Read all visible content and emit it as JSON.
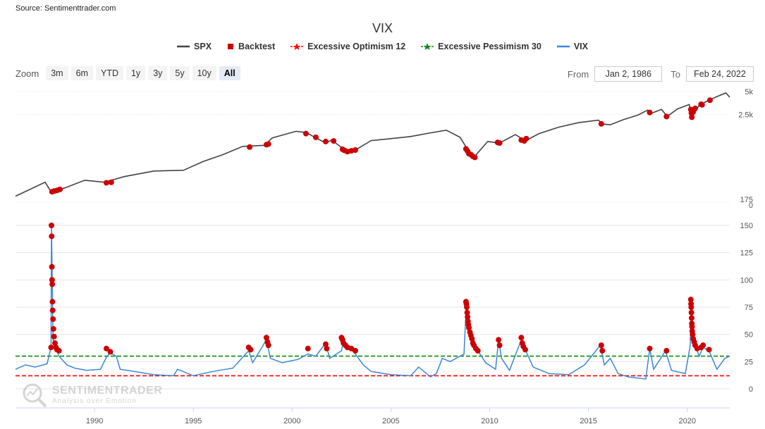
{
  "source": "Source: Sentimenttrader.com",
  "chart_data": {
    "type": "line",
    "title": "VIX",
    "legend": [
      {
        "name": "SPX",
        "color": "#434348",
        "symbol": "line"
      },
      {
        "name": "Backtest",
        "color": "#cc0000",
        "symbol": "square"
      },
      {
        "name": "Excessive Optimism 12",
        "color": "#ff0000",
        "symbol": "star"
      },
      {
        "name": "Excessive Pessimism 30",
        "color": "#0a8a0a",
        "symbol": "star"
      },
      {
        "name": "VIX",
        "color": "#3a87d8",
        "symbol": "line"
      }
    ],
    "legend_position": "top-center",
    "x_range": [
      1986.0,
      2022.15
    ],
    "x_ticks": [
      "1990",
      "1995",
      "2000",
      "2005",
      "2010",
      "2015",
      "2020"
    ],
    "top_panel": {
      "name": "SPX",
      "y_ticks": [
        "5k",
        "2.5k",
        "175",
        "0"
      ],
      "log_scale": true,
      "series": [
        [
          1986.0,
          210
        ],
        [
          1987.5,
          320
        ],
        [
          1987.8,
          240
        ],
        [
          1988.5,
          270
        ],
        [
          1989.5,
          340
        ],
        [
          1990.5,
          320
        ],
        [
          1991.5,
          380
        ],
        [
          1993.0,
          450
        ],
        [
          1994.5,
          460
        ],
        [
          1995.5,
          600
        ],
        [
          1996.5,
          740
        ],
        [
          1997.5,
          950
        ],
        [
          1998.6,
          980
        ],
        [
          1999.0,
          1230
        ],
        [
          2000.2,
          1500
        ],
        [
          2000.7,
          1450
        ],
        [
          2001.7,
          1050
        ],
        [
          2002.0,
          1150
        ],
        [
          2002.8,
          800
        ],
        [
          2003.2,
          850
        ],
        [
          2004.0,
          1130
        ],
        [
          2005.0,
          1200
        ],
        [
          2006.0,
          1280
        ],
        [
          2007.0,
          1430
        ],
        [
          2007.8,
          1550
        ],
        [
          2008.5,
          1250
        ],
        [
          2008.9,
          850
        ],
        [
          2009.2,
          680
        ],
        [
          2009.9,
          1100
        ],
        [
          2010.5,
          1050
        ],
        [
          2011.3,
          1360
        ],
        [
          2011.8,
          1120
        ],
        [
          2012.5,
          1400
        ],
        [
          2013.5,
          1700
        ],
        [
          2014.5,
          1950
        ],
        [
          2015.5,
          2100
        ],
        [
          2015.7,
          1870
        ],
        [
          2016.1,
          1830
        ],
        [
          2016.8,
          2150
        ],
        [
          2017.5,
          2450
        ],
        [
          2018.0,
          2850
        ],
        [
          2018.2,
          2600
        ],
        [
          2018.7,
          2920
        ],
        [
          2018.98,
          2350
        ],
        [
          2019.5,
          2950
        ],
        [
          2020.1,
          3380
        ],
        [
          2020.22,
          2240
        ],
        [
          2020.6,
          3300
        ],
        [
          2021.0,
          3750
        ],
        [
          2021.5,
          4300
        ],
        [
          2021.95,
          4790
        ],
        [
          2022.15,
          4220
        ]
      ],
      "backtest_points": [
        [
          1987.85,
          240
        ],
        [
          1987.95,
          245
        ],
        [
          1988.1,
          250
        ],
        [
          1988.25,
          258
        ],
        [
          1990.6,
          315
        ],
        [
          1990.85,
          320
        ],
        [
          1997.85,
          930
        ],
        [
          1998.7,
          1000
        ],
        [
          1998.8,
          1020
        ],
        [
          2000.7,
          1400
        ],
        [
          2001.2,
          1250
        ],
        [
          2001.7,
          1100
        ],
        [
          2002.1,
          1120
        ],
        [
          2002.55,
          870
        ],
        [
          2002.65,
          840
        ],
        [
          2002.8,
          810
        ],
        [
          2003.0,
          830
        ],
        [
          2003.2,
          850
        ],
        [
          2008.8,
          880
        ],
        [
          2008.88,
          820
        ],
        [
          2008.95,
          760
        ],
        [
          2009.05,
          740
        ],
        [
          2009.15,
          700
        ],
        [
          2009.25,
          680
        ],
        [
          2010.4,
          1070
        ],
        [
          2010.5,
          1050
        ],
        [
          2011.6,
          1150
        ],
        [
          2011.75,
          1120
        ],
        [
          2011.85,
          1200
        ],
        [
          2015.65,
          1880
        ],
        [
          2018.1,
          2650
        ],
        [
          2018.95,
          2350
        ],
        [
          2020.18,
          2900
        ],
        [
          2020.21,
          2600
        ],
        [
          2020.23,
          2300
        ],
        [
          2020.3,
          2700
        ],
        [
          2020.4,
          3000
        ],
        [
          2020.7,
          3400
        ],
        [
          2020.75,
          3350
        ],
        [
          2021.15,
          3850
        ]
      ]
    },
    "bottom_panel": {
      "name": "VIX",
      "y_ticks": [
        "150",
        "125",
        "100",
        "75",
        "50",
        "25",
        "0"
      ],
      "ylim": [
        0,
        150
      ],
      "thresholds": [
        {
          "name": "Excessive Pessimism 30",
          "value": 30,
          "color": "#0a8a0a"
        },
        {
          "name": "Excessive Optimism 12",
          "value": 12,
          "color": "#ff0000"
        }
      ],
      "series": [
        [
          1986.0,
          18
        ],
        [
          1986.5,
          22
        ],
        [
          1987.0,
          20
        ],
        [
          1987.6,
          23
        ],
        [
          1987.8,
          38
        ],
        [
          1987.82,
          150
        ],
        [
          1987.86,
          100
        ],
        [
          1987.9,
          45
        ],
        [
          1988.2,
          30
        ],
        [
          1988.6,
          22
        ],
        [
          1989.0,
          19
        ],
        [
          1989.6,
          17
        ],
        [
          1990.3,
          18
        ],
        [
          1990.6,
          29
        ],
        [
          1990.8,
          33
        ],
        [
          1991.1,
          30
        ],
        [
          1991.3,
          18
        ],
        [
          1992.0,
          16
        ],
        [
          1993.0,
          13
        ],
        [
          1994.0,
          12
        ],
        [
          1994.2,
          18
        ],
        [
          1995.0,
          12
        ],
        [
          1996.0,
          16
        ],
        [
          1997.0,
          19
        ],
        [
          1997.8,
          35
        ],
        [
          1998.0,
          24
        ],
        [
          1998.7,
          45
        ],
        [
          1998.9,
          28
        ],
        [
          1999.5,
          24
        ],
        [
          2000.3,
          27
        ],
        [
          2000.8,
          32
        ],
        [
          2001.2,
          30
        ],
        [
          2001.7,
          42
        ],
        [
          2001.9,
          28
        ],
        [
          2002.5,
          35
        ],
        [
          2002.6,
          45
        ],
        [
          2002.8,
          40
        ],
        [
          2003.2,
          32
        ],
        [
          2003.6,
          22
        ],
        [
          2004.0,
          16
        ],
        [
          2005.0,
          13
        ],
        [
          2006.0,
          12
        ],
        [
          2006.4,
          20
        ],
        [
          2007.0,
          11
        ],
        [
          2007.3,
          14
        ],
        [
          2007.6,
          28
        ],
        [
          2008.0,
          25
        ],
        [
          2008.7,
          32
        ],
        [
          2008.82,
          80
        ],
        [
          2008.9,
          65
        ],
        [
          2009.0,
          52
        ],
        [
          2009.2,
          45
        ],
        [
          2009.4,
          35
        ],
        [
          2009.8,
          24
        ],
        [
          2010.3,
          18
        ],
        [
          2010.45,
          45
        ],
        [
          2010.6,
          28
        ],
        [
          2011.0,
          17
        ],
        [
          2011.6,
          45
        ],
        [
          2011.8,
          36
        ],
        [
          2012.2,
          20
        ],
        [
          2013.0,
          14
        ],
        [
          2014.0,
          13
        ],
        [
          2014.8,
          22
        ],
        [
          2015.6,
          40
        ],
        [
          2015.8,
          22
        ],
        [
          2016.1,
          28
        ],
        [
          2016.5,
          14
        ],
        [
          2017.0,
          11
        ],
        [
          2017.9,
          9
        ],
        [
          2018.1,
          37
        ],
        [
          2018.3,
          18
        ],
        [
          2018.9,
          35
        ],
        [
          2019.2,
          17
        ],
        [
          2019.9,
          14
        ],
        [
          2020.15,
          40
        ],
        [
          2020.2,
          82
        ],
        [
          2020.3,
          45
        ],
        [
          2020.6,
          30
        ],
        [
          2020.8,
          38
        ],
        [
          2021.1,
          35
        ],
        [
          2021.5,
          18
        ],
        [
          2021.9,
          28
        ],
        [
          2022.15,
          30
        ]
      ],
      "backtest_points": [
        [
          1987.8,
          38
        ],
        [
          1987.82,
          150
        ],
        [
          1987.83,
          140
        ],
        [
          1987.84,
          112
        ],
        [
          1987.85,
          100
        ],
        [
          1987.86,
          96
        ],
        [
          1987.87,
          80
        ],
        [
          1987.88,
          72
        ],
        [
          1987.9,
          64
        ],
        [
          1987.92,
          55
        ],
        [
          1987.95,
          48
        ],
        [
          1988.0,
          42
        ],
        [
          1988.05,
          38
        ],
        [
          1988.1,
          36
        ],
        [
          1988.2,
          35
        ],
        [
          1990.6,
          37
        ],
        [
          1990.8,
          34
        ],
        [
          1997.8,
          38
        ],
        [
          1997.9,
          36
        ],
        [
          1998.7,
          47
        ],
        [
          1998.75,
          43
        ],
        [
          1998.8,
          40
        ],
        [
          2000.8,
          37
        ],
        [
          2001.7,
          41
        ],
        [
          2001.75,
          37
        ],
        [
          2002.5,
          47
        ],
        [
          2002.55,
          45
        ],
        [
          2002.6,
          42
        ],
        [
          2002.7,
          40
        ],
        [
          2002.8,
          38
        ],
        [
          2003.0,
          37
        ],
        [
          2003.2,
          35
        ],
        [
          2008.8,
          80
        ],
        [
          2008.82,
          78
        ],
        [
          2008.84,
          75
        ],
        [
          2008.86,
          70
        ],
        [
          2008.88,
          66
        ],
        [
          2008.9,
          62
        ],
        [
          2008.92,
          59
        ],
        [
          2008.95,
          56
        ],
        [
          2009.0,
          52
        ],
        [
          2009.05,
          49
        ],
        [
          2009.1,
          46
        ],
        [
          2009.15,
          42
        ],
        [
          2009.2,
          40
        ],
        [
          2009.3,
          37
        ],
        [
          2009.4,
          35
        ],
        [
          2010.45,
          45
        ],
        [
          2010.5,
          40
        ],
        [
          2011.6,
          47
        ],
        [
          2011.65,
          42
        ],
        [
          2011.7,
          39
        ],
        [
          2011.8,
          36
        ],
        [
          2015.65,
          40
        ],
        [
          2015.7,
          35
        ],
        [
          2018.1,
          37
        ],
        [
          2018.95,
          35
        ],
        [
          2020.18,
          82
        ],
        [
          2020.19,
          78
        ],
        [
          2020.2,
          75
        ],
        [
          2020.21,
          70
        ],
        [
          2020.22,
          65
        ],
        [
          2020.23,
          60
        ],
        [
          2020.24,
          57
        ],
        [
          2020.25,
          53
        ],
        [
          2020.27,
          50
        ],
        [
          2020.3,
          46
        ],
        [
          2020.35,
          43
        ],
        [
          2020.4,
          40
        ],
        [
          2020.5,
          37
        ],
        [
          2020.7,
          38
        ],
        [
          2020.8,
          40
        ],
        [
          2021.1,
          36
        ]
      ]
    }
  },
  "zoom": {
    "label": "Zoom",
    "buttons": [
      "3m",
      "6m",
      "YTD",
      "1y",
      "3y",
      "5y",
      "10y",
      "All"
    ],
    "active": "All"
  },
  "range": {
    "from_label": "From",
    "from_value": "Jan 2, 1986",
    "to_label": "To",
    "to_value": "Feb 24, 2022"
  },
  "watermark": {
    "title": "SENTIMENTRADER",
    "subtitle": "Analysis over Emotion"
  }
}
